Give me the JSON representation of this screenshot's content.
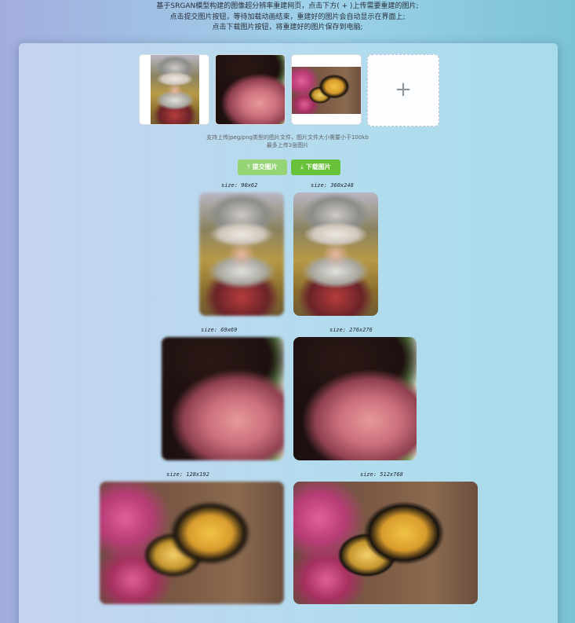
{
  "intro": {
    "line1": "基于SRGAN模型构建的图像超分辨率重建网页，点击下方( + )上传需要重建的图片;",
    "line2": "点击提交图片按钮，等待加载动画结束，重建好的图片会自动显示在界面上;",
    "line3": "点击下载图片按钮，将重建好的图片保存到电脑;"
  },
  "upload": {
    "add_symbol": "+",
    "tip_line1": "支持上传jpeg/png类型的图片文件，图片文件大小需要小于100kb",
    "tip_line2": "最多上传3张图片"
  },
  "buttons": {
    "submit_icon": "⤒",
    "submit_label": "提交图片",
    "download_icon": "⤓",
    "download_label": "下载图片"
  },
  "results": [
    {
      "input_size": "size: 90x62",
      "output_size": "size: 360x248"
    },
    {
      "input_size": "size: 69x69",
      "output_size": "size: 276x276"
    },
    {
      "input_size": "size: 128x192",
      "output_size": "size: 512x768"
    }
  ]
}
